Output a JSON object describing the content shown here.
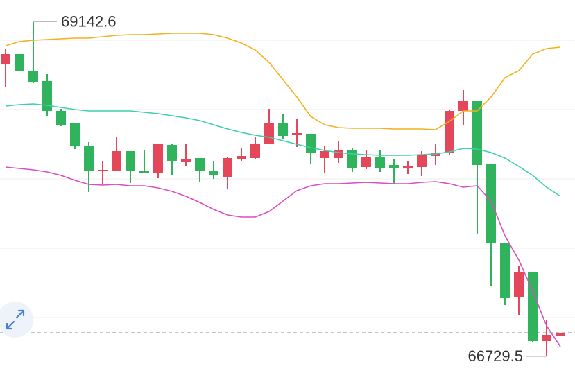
{
  "chart_data": {
    "type": "candlestick",
    "ylim": [
      66610,
      69300
    ],
    "gridlines": [
      69010,
      68510,
      68010,
      67510,
      67010
    ],
    "up_color": "#e5475a",
    "down_color": "#2fb35c",
    "open": [
      68835,
      68910,
      68790,
      68715,
      68500,
      68410,
      68250,
      68065,
      68065,
      68210,
      68070,
      68050,
      68255,
      68130,
      68160,
      68070,
      68020,
      68155,
      68160,
      68265,
      68410,
      68325,
      68335,
      68160,
      68160,
      68220,
      68095,
      68170,
      68110,
      68085,
      68095,
      68175,
      68195,
      68500,
      68575,
      68115,
      67550,
      67160,
      67335,
      66840,
      66875
    ],
    "high": [
      68950,
      68910,
      69142.6,
      68765,
      68515,
      68410,
      68275,
      68140,
      68315,
      68210,
      68215,
      68260,
      68265,
      68260,
      68160,
      68140,
      68170,
      68235,
      68310,
      68515,
      68475,
      68440,
      68335,
      68250,
      68285,
      68235,
      68220,
      68220,
      68155,
      68140,
      68210,
      68260,
      68510,
      68650,
      68575,
      68115,
      67550,
      67385,
      67335,
      66995,
      66900
    ],
    "low": [
      68675,
      68785,
      68700,
      68465,
      68390,
      68225,
      67915,
      67965,
      68065,
      67980,
      68050,
      68015,
      68040,
      68100,
      67985,
      68010,
      67935,
      68140,
      68150,
      68260,
      68300,
      68240,
      68115,
      68050,
      68125,
      68060,
      68080,
      68060,
      67975,
      68045,
      68030,
      68110,
      68180,
      68400,
      67615,
      67240,
      67100,
      67025,
      66830,
      66729.5,
      66875
    ],
    "close": [
      68910,
      68785,
      68710,
      68500,
      68400,
      68245,
      68065,
      68075,
      68210,
      68065,
      68050,
      68260,
      68140,
      68155,
      68065,
      68035,
      68160,
      68175,
      68265,
      68410,
      68320,
      68340,
      68195,
      68210,
      68220,
      68090,
      68170,
      68085,
      68085,
      68105,
      68185,
      68195,
      68500,
      68575,
      68110,
      67550,
      67150,
      67335,
      66840,
      66885,
      66900
    ],
    "bands": [
      {
        "color": "#f2b11c",
        "values": [
          68970,
          69000,
          69010,
          69015,
          69020,
          69025,
          69025,
          69035,
          69045,
          69050,
          69050,
          69055,
          69060,
          69060,
          69060,
          69050,
          69025,
          68990,
          68940,
          68850,
          68725,
          68600,
          68460,
          68400,
          68380,
          68375,
          68375,
          68375,
          68370,
          68370,
          68370,
          68365,
          68425,
          68500,
          68500,
          68600,
          68740,
          68790,
          68910,
          68950,
          68960
        ]
      },
      {
        "color": "#3ccfae",
        "values": [
          68535,
          68545,
          68550,
          68540,
          68525,
          68510,
          68500,
          68500,
          68500,
          68500,
          68490,
          68480,
          68465,
          68450,
          68430,
          68400,
          68370,
          68345,
          68325,
          68310,
          68285,
          68260,
          68235,
          68215,
          68200,
          68190,
          68185,
          68180,
          68180,
          68180,
          68185,
          68190,
          68205,
          68230,
          68225,
          68200,
          68160,
          68100,
          68035,
          67950,
          67885
        ]
      },
      {
        "color": "#d94ec2",
        "values": [
          68095,
          68085,
          68075,
          68060,
          68035,
          68000,
          67970,
          67965,
          67970,
          67960,
          67960,
          67945,
          67920,
          67885,
          67840,
          67790,
          67750,
          67735,
          67735,
          67775,
          67850,
          67925,
          67960,
          67975,
          67975,
          67980,
          67985,
          67980,
          67975,
          67975,
          67985,
          67990,
          67975,
          67950,
          67960,
          67850,
          67600,
          67425,
          67200,
          66950,
          66800
        ]
      }
    ],
    "annotations": [
      {
        "text": "69142.6"
      },
      {
        "text": "66729.5"
      }
    ]
  }
}
